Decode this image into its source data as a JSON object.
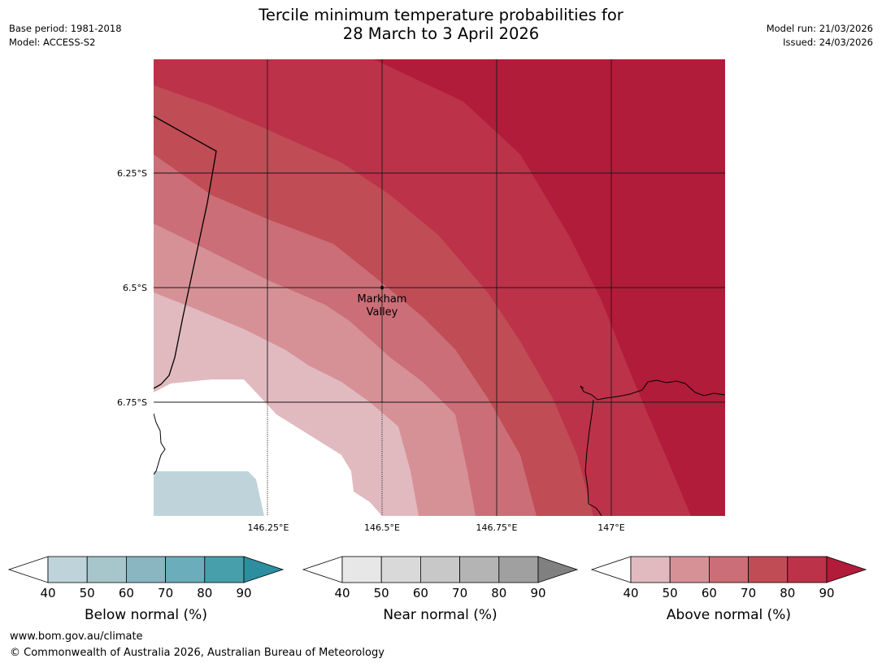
{
  "header": {
    "title_line1": "Tercile minimum temperature probabilities for",
    "title_line2": "28 March to 3 April 2026",
    "base_period": "Base period: 1981-2018",
    "model": "Model: ACCESS-S2",
    "model_run": "Model run: 21/03/2026",
    "issued": "Issued: 24/03/2026"
  },
  "map": {
    "latitude_labels": [
      "6.25°S",
      "6.5°S",
      "6.75°S"
    ],
    "longitude_labels": [
      "146.25°E",
      "146.5°E",
      "146.75°E",
      "147°E"
    ],
    "place_name_line1": "Markham",
    "place_name_line2": "Valley"
  },
  "legends": [
    {
      "title": "Below normal (%)",
      "ticks": [
        "40",
        "50",
        "60",
        "70",
        "80",
        "90"
      ],
      "colors": [
        "#ffffff",
        "#bfd4da",
        "#a6c6cc",
        "#89b6c1",
        "#6badba",
        "#479fac",
        "#2c8e9f"
      ]
    },
    {
      "title": "Near normal (%)",
      "ticks": [
        "40",
        "50",
        "60",
        "70",
        "80",
        "90"
      ],
      "colors": [
        "#ffffff",
        "#e7e7e7",
        "#d9d9d9",
        "#c8c8c8",
        "#b4b4b4",
        "#a0a0a0",
        "#808080"
      ]
    },
    {
      "title": "Above normal (%)",
      "ticks": [
        "40",
        "50",
        "60",
        "70",
        "80",
        "90"
      ],
      "colors": [
        "#ffffff",
        "#e1babf",
        "#d69197",
        "#cb6e77",
        "#c04c56",
        "#bc3249",
        "#b01c39"
      ]
    }
  ],
  "footer": {
    "website": "www.bom.gov.au/climate",
    "copyright": "© Commonwealth of Australia 2026, Australian Bureau of Meteorology"
  }
}
